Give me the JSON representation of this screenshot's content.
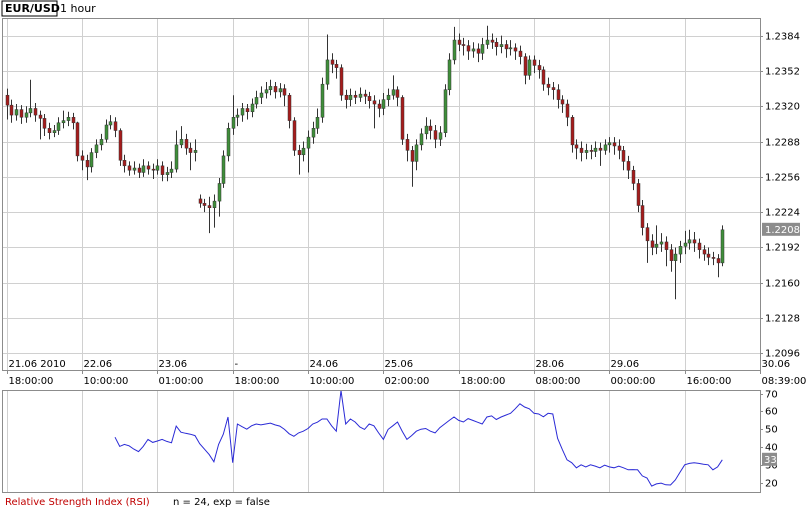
{
  "chart_data": {
    "type": "candlestick",
    "symbol": "EUR/USD",
    "interval": "1 hour",
    "indicator_name": "Relative Strength Index (RSI)",
    "indicator_params": "n = 24, exp = false",
    "up_color": "#3f8f3a",
    "down_color": "#a61c1c",
    "wick_color": "#333333",
    "rsi_color": "#2a2ad6",
    "grid": true,
    "ylim": [
      1.208,
      1.24
    ],
    "yticks": [
      1.2096,
      1.2128,
      {
        "value": 1.216,
        "label": "1.2160"
      },
      1.2192,
      1.2224,
      1.2256,
      1.2288,
      {
        "value": 1.232,
        "label": "1.2320"
      },
      1.2352,
      1.2384
    ],
    "xlim": [
      -1,
      160
    ],
    "xticks": [
      {
        "value": 0,
        "label": "18:00:00"
      },
      {
        "value": 16,
        "label": "10:00:00"
      },
      {
        "value": 32,
        "label": "01:00:00"
      },
      {
        "value": 48,
        "label": "18:00:00"
      },
      {
        "value": 64,
        "label": "10:00:00"
      },
      {
        "value": 80,
        "label": "02:00:00"
      },
      {
        "value": 96,
        "label": "18:00:00"
      },
      {
        "value": 112,
        "label": "08:00:00"
      },
      {
        "value": 128,
        "label": "00:00:00"
      },
      {
        "value": 144,
        "label": "16:00:00"
      },
      {
        "value": 160,
        "label": "08:39:00"
      }
    ],
    "date_ticks": [
      {
        "value": 0,
        "label": "21.06 2010"
      },
      {
        "value": 16,
        "label": "22.06"
      },
      {
        "value": 32,
        "label": "23.06"
      },
      {
        "value": 48,
        "label": "-"
      },
      {
        "value": 64,
        "label": "24.06"
      },
      {
        "value": 80,
        "label": "25.06"
      },
      {
        "value": 112,
        "label": "28.06"
      },
      {
        "value": 128,
        "label": "29.06"
      },
      {
        "value": 160,
        "label": "30.06"
      }
    ],
    "candles": [
      [
        1.233,
        1.2336,
        1.2308,
        1.2321
      ],
      [
        1.2321,
        1.2326,
        1.2305,
        1.2312
      ],
      [
        1.2312,
        1.2322,
        1.2307,
        1.2317
      ],
      [
        1.2317,
        1.2321,
        1.2304,
        1.231
      ],
      [
        1.231,
        1.232,
        1.2305,
        1.2314
      ],
      [
        1.2314,
        1.2344,
        1.231,
        1.2318
      ],
      [
        1.2318,
        1.2323,
        1.2306,
        1.2312
      ],
      [
        1.2312,
        1.2316,
        1.229,
        1.2309
      ],
      [
        1.2309,
        1.2313,
        1.2293,
        1.23
      ],
      [
        1.23,
        1.2305,
        1.229,
        1.2296
      ],
      [
        1.2296,
        1.2303,
        1.2292,
        1.2298
      ],
      [
        1.2298,
        1.231,
        1.2294,
        1.2305
      ],
      [
        1.2305,
        1.2316,
        1.23,
        1.2307
      ],
      [
        1.2307,
        1.2315,
        1.2302,
        1.231
      ],
      [
        1.231,
        1.2314,
        1.2299,
        1.2305
      ],
      [
        1.2305,
        1.2306,
        1.227,
        1.2275
      ],
      [
        1.2275,
        1.228,
        1.2262,
        1.2271
      ],
      [
        1.2271,
        1.2276,
        1.2253,
        1.2265
      ],
      [
        1.2265,
        1.2282,
        1.226,
        1.2278
      ],
      [
        1.2278,
        1.229,
        1.2273,
        1.2285
      ],
      [
        1.2285,
        1.2295,
        1.228,
        1.229
      ],
      [
        1.229,
        1.2308,
        1.2287,
        1.2303
      ],
      [
        1.2303,
        1.2312,
        1.2299,
        1.2306
      ],
      [
        1.2306,
        1.231,
        1.2292,
        1.2298
      ],
      [
        1.2298,
        1.23,
        1.2266,
        1.2271
      ],
      [
        1.2271,
        1.2276,
        1.226,
        1.2266
      ],
      [
        1.2266,
        1.227,
        1.2257,
        1.2262
      ],
      [
        1.2262,
        1.227,
        1.2258,
        1.2264
      ],
      [
        1.2264,
        1.2268,
        1.2255,
        1.226
      ],
      [
        1.226,
        1.2272,
        1.2256,
        1.2266
      ],
      [
        1.2266,
        1.227,
        1.2258,
        1.2263
      ],
      [
        1.2263,
        1.2268,
        1.2254,
        1.2262
      ],
      [
        1.2262,
        1.2272,
        1.2258,
        1.2266
      ],
      [
        1.2266,
        1.227,
        1.2252,
        1.2258
      ],
      [
        1.2258,
        1.2265,
        1.2252,
        1.226
      ],
      [
        1.226,
        1.227,
        1.2255,
        1.2263
      ],
      [
        1.2263,
        1.2298,
        1.226,
        1.2285
      ],
      [
        1.2285,
        1.2302,
        1.2282,
        1.229
      ],
      [
        1.229,
        1.2295,
        1.2276,
        1.2282
      ],
      [
        1.2282,
        1.2287,
        1.2262,
        1.2278
      ],
      [
        1.2278,
        1.229,
        1.227,
        1.228
      ],
      [
        1.2236,
        1.224,
        1.2228,
        1.2232
      ],
      [
        1.2232,
        1.2236,
        1.2224,
        1.223
      ],
      [
        1.223,
        1.2238,
        1.2205,
        1.2228
      ],
      [
        1.2228,
        1.224,
        1.221,
        1.2234
      ],
      [
        1.2234,
        1.2255,
        1.222,
        1.225
      ],
      [
        1.225,
        1.228,
        1.2246,
        1.2275
      ],
      [
        1.2275,
        1.2305,
        1.227,
        1.23
      ],
      [
        1.23,
        1.233,
        1.2294,
        1.231
      ],
      [
        1.231,
        1.2318,
        1.2302,
        1.2312
      ],
      [
        1.2312,
        1.2323,
        1.2306,
        1.2318
      ],
      [
        1.2318,
        1.2322,
        1.2308,
        1.2315
      ],
      [
        1.2315,
        1.2327,
        1.231,
        1.2322
      ],
      [
        1.2322,
        1.2334,
        1.2318,
        1.2328
      ],
      [
        1.2328,
        1.2338,
        1.2322,
        1.2332
      ],
      [
        1.2332,
        1.2342,
        1.2327,
        1.2335
      ],
      [
        1.2335,
        1.2344,
        1.233,
        1.2338
      ],
      [
        1.2338,
        1.2342,
        1.2327,
        1.2333
      ],
      [
        1.2333,
        1.2341,
        1.2328,
        1.2336
      ],
      [
        1.2336,
        1.234,
        1.232,
        1.233
      ],
      [
        1.233,
        1.2332,
        1.23,
        1.2307
      ],
      [
        1.2307,
        1.231,
        1.2275,
        1.228
      ],
      [
        1.228,
        1.2285,
        1.2258,
        1.2276
      ],
      [
        1.2276,
        1.2288,
        1.227,
        1.2282
      ],
      [
        1.2282,
        1.2298,
        1.226,
        1.2292
      ],
      [
        1.2292,
        1.2306,
        1.2286,
        1.23
      ],
      [
        1.23,
        1.2318,
        1.2295,
        1.231
      ],
      [
        1.231,
        1.2346,
        1.2305,
        1.234
      ],
      [
        1.234,
        1.2385,
        1.2335,
        1.2362
      ],
      [
        1.2362,
        1.2368,
        1.235,
        1.2358
      ],
      [
        1.2358,
        1.2362,
        1.2345,
        1.2355
      ],
      [
        1.2355,
        1.2358,
        1.2325,
        1.233
      ],
      [
        1.233,
        1.2335,
        1.2318,
        1.2326
      ],
      [
        1.2326,
        1.2336,
        1.232,
        1.233
      ],
      [
        1.233,
        1.2334,
        1.2322,
        1.2328
      ],
      [
        1.2328,
        1.2337,
        1.2324,
        1.2331
      ],
      [
        1.2331,
        1.2335,
        1.2322,
        1.2329
      ],
      [
        1.2329,
        1.2333,
        1.2318,
        1.2325
      ],
      [
        1.2325,
        1.233,
        1.23,
        1.2322
      ],
      [
        1.2322,
        1.2326,
        1.231,
        1.2318
      ],
      [
        1.2318,
        1.2332,
        1.2312,
        1.2326
      ],
      [
        1.2326,
        1.2336,
        1.232,
        1.233
      ],
      [
        1.233,
        1.2348,
        1.2326,
        1.2335
      ],
      [
        1.2335,
        1.2338,
        1.232,
        1.2328
      ],
      [
        1.2328,
        1.233,
        1.2285,
        1.229
      ],
      [
        1.229,
        1.2295,
        1.227,
        1.228
      ],
      [
        1.228,
        1.2284,
        1.2247,
        1.227
      ],
      [
        1.227,
        1.229,
        1.2262,
        1.2285
      ],
      [
        1.2285,
        1.23,
        1.228,
        1.2295
      ],
      [
        1.2295,
        1.231,
        1.229,
        1.2302
      ],
      [
        1.2302,
        1.2308,
        1.229,
        1.2298
      ],
      [
        1.2298,
        1.2303,
        1.2282,
        1.229
      ],
      [
        1.229,
        1.2302,
        1.2284,
        1.2296
      ],
      [
        1.2296,
        1.234,
        1.2292,
        1.2335
      ],
      [
        1.2335,
        1.2368,
        1.233,
        1.2362
      ],
      [
        1.2362,
        1.2392,
        1.2358,
        1.238
      ],
      [
        1.238,
        1.2386,
        1.237,
        1.2376
      ],
      [
        1.2376,
        1.2382,
        1.2366,
        1.2375
      ],
      [
        1.2375,
        1.238,
        1.2362,
        1.237
      ],
      [
        1.237,
        1.2378,
        1.2364,
        1.2372
      ],
      [
        1.2372,
        1.2377,
        1.236,
        1.2368
      ],
      [
        1.2368,
        1.2382,
        1.2362,
        1.2376
      ],
      [
        1.2376,
        1.2393,
        1.2372,
        1.238
      ],
      [
        1.238,
        1.2386,
        1.2372,
        1.2378
      ],
      [
        1.2378,
        1.2382,
        1.2366,
        1.2374
      ],
      [
        1.2374,
        1.2384,
        1.2368,
        1.2376
      ],
      [
        1.2376,
        1.238,
        1.2364,
        1.2372
      ],
      [
        1.2372,
        1.238,
        1.2366,
        1.2373
      ],
      [
        1.2373,
        1.2377,
        1.2362,
        1.237
      ],
      [
        1.237,
        1.2375,
        1.2358,
        1.2365
      ],
      [
        1.2365,
        1.2368,
        1.234,
        1.2348
      ],
      [
        1.2348,
        1.2366,
        1.2344,
        1.2362
      ],
      [
        1.2362,
        1.2366,
        1.235,
        1.2357
      ],
      [
        1.2357,
        1.2362,
        1.2345,
        1.2353
      ],
      [
        1.2353,
        1.2356,
        1.2334,
        1.234
      ],
      [
        1.234,
        1.2346,
        1.233,
        1.2337
      ],
      [
        1.2337,
        1.2342,
        1.2326,
        1.2335
      ],
      [
        1.2335,
        1.234,
        1.2318,
        1.2326
      ],
      [
        1.2326,
        1.233,
        1.2314,
        1.2322
      ],
      [
        1.2322,
        1.2326,
        1.2302,
        1.231
      ],
      [
        1.231,
        1.2312,
        1.2278,
        1.2285
      ],
      [
        1.2285,
        1.229,
        1.2272,
        1.2282
      ],
      [
        1.2282,
        1.2288,
        1.227,
        1.2278
      ],
      [
        1.2278,
        1.2286,
        1.2272,
        1.228
      ],
      [
        1.228,
        1.2285,
        1.2272,
        1.2279
      ],
      [
        1.2279,
        1.2288,
        1.2274,
        1.2282
      ],
      [
        1.2282,
        1.2287,
        1.2266,
        1.228
      ],
      [
        1.228,
        1.229,
        1.2276,
        1.2285
      ],
      [
        1.2285,
        1.2292,
        1.2278,
        1.2287
      ],
      [
        1.2287,
        1.2292,
        1.2276,
        1.2284
      ],
      [
        1.2284,
        1.229,
        1.2272,
        1.228
      ],
      [
        1.228,
        1.2284,
        1.2262,
        1.227
      ],
      [
        1.227,
        1.2275,
        1.2254,
        1.2262
      ],
      [
        1.2262,
        1.2266,
        1.2244,
        1.225
      ],
      [
        1.225,
        1.2254,
        1.2224,
        1.223
      ],
      [
        1.223,
        1.2235,
        1.2203,
        1.221
      ],
      [
        1.221,
        1.2214,
        1.2178,
        1.2198
      ],
      [
        1.2198,
        1.2204,
        1.2185,
        1.2192
      ],
      [
        1.2192,
        1.2212,
        1.2186,
        1.2195
      ],
      [
        1.2195,
        1.2205,
        1.2188,
        1.2197
      ],
      [
        1.2197,
        1.2202,
        1.2175,
        1.219
      ],
      [
        1.219,
        1.2195,
        1.217,
        1.218
      ],
      [
        1.218,
        1.2192,
        1.2145,
        1.2186
      ],
      [
        1.2186,
        1.2198,
        1.2178,
        1.2193
      ],
      [
        1.2193,
        1.2207,
        1.2186,
        1.2196
      ],
      [
        1.2196,
        1.2208,
        1.219,
        1.2199
      ],
      [
        1.2199,
        1.2206,
        1.2188,
        1.2196
      ],
      [
        1.2196,
        1.22,
        1.2182,
        1.219
      ],
      [
        1.219,
        1.2194,
        1.218,
        1.2186
      ],
      [
        1.2186,
        1.2192,
        1.2176,
        1.2183
      ],
      [
        1.2183,
        1.2188,
        1.2176,
        1.2182
      ],
      [
        1.2182,
        1.2186,
        1.2165,
        1.2178
      ],
      [
        1.2178,
        1.2212,
        1.2175,
        1.2208
      ]
    ],
    "rsi_ylim": [
      15,
      72
    ],
    "rsi_yticks": [
      20,
      30,
      40,
      50,
      60,
      70
    ],
    "rsi": [
      null,
      null,
      null,
      null,
      null,
      null,
      null,
      null,
      null,
      null,
      null,
      null,
      null,
      null,
      null,
      null,
      null,
      null,
      null,
      null,
      null,
      null,
      null,
      45.6,
      40.5,
      41.6,
      40.8,
      39,
      37.6,
      40.5,
      44.4,
      42.7,
      43.5,
      44.4,
      43.3,
      42.5,
      51.8,
      48.4,
      47.8,
      47.3,
      46.5,
      42,
      39,
      35.9,
      31.9,
      41.6,
      47.3,
      56.9,
      31.4,
      53,
      51.5,
      50.1,
      52,
      53,
      52.5,
      53,
      53.5,
      52.5,
      51.8,
      50,
      47.5,
      46.1,
      48,
      49,
      50.5,
      53,
      54,
      55.8,
      55.8,
      52,
      49,
      71.7,
      53,
      55.8,
      54.1,
      51.3,
      50,
      53,
      52,
      48,
      44.4,
      50,
      52,
      54.1,
      49,
      44.4,
      46.5,
      49,
      50.1,
      50.5,
      49,
      48,
      51,
      53,
      55,
      56.9,
      55,
      54.1,
      56,
      55,
      54,
      53,
      56.9,
      57.5,
      55.5,
      56.9,
      58,
      59,
      61.5,
      64.3,
      62.5,
      61.5,
      59,
      58.6,
      57,
      59,
      58.6,
      45,
      38.8,
      33,
      31.4,
      28.5,
      30.2,
      29,
      30.2,
      29.5,
      28.5,
      30,
      29,
      28.5,
      29.5,
      28.5,
      27.4,
      27.5,
      27.4,
      24,
      22.8,
      18.3,
      19.5,
      20,
      19,
      18.9,
      21.7,
      26,
      30.2,
      31,
      31.4,
      31,
      30.5,
      30.2,
      27.4,
      29,
      33
    ]
  }
}
